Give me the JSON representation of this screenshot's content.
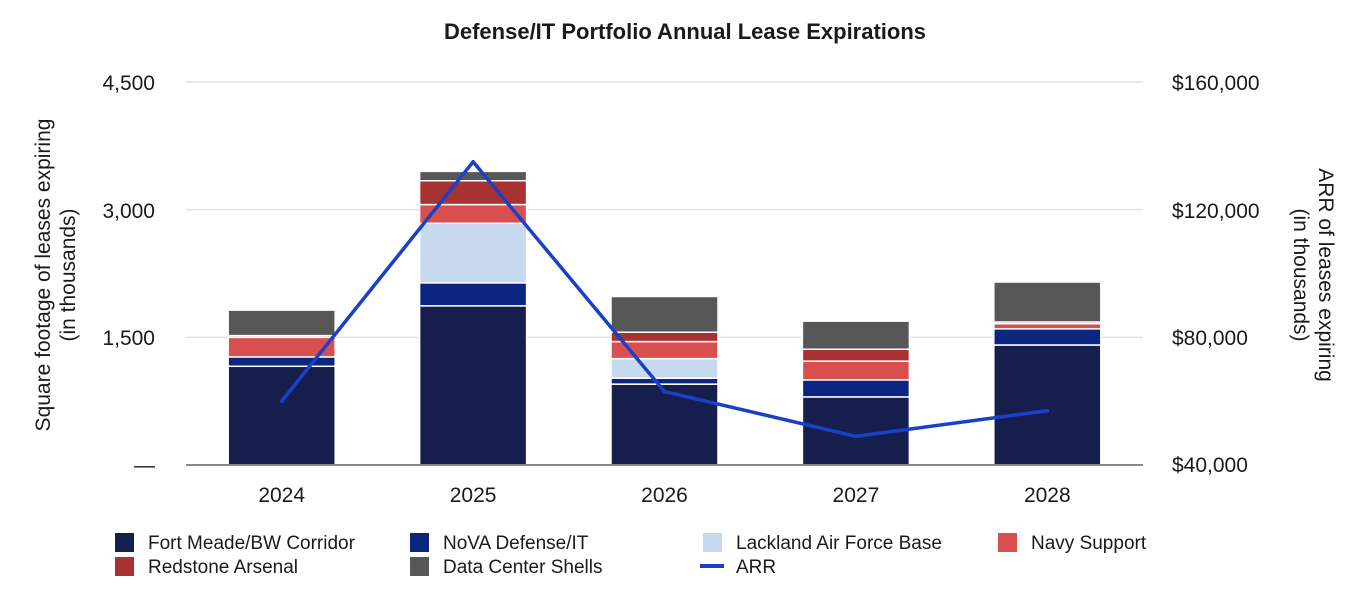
{
  "chart_data": {
    "type": "bar",
    "stacked": true,
    "title": "Defense/IT Portfolio Annual Lease Expirations",
    "categories": [
      "2024",
      "2025",
      "2026",
      "2027",
      "2028"
    ],
    "series": [
      {
        "name": "Fort Meade/BW Corridor",
        "color": "#161e4d",
        "values": [
          1160,
          1870,
          950,
          800,
          1410
        ]
      },
      {
        "name": "NoVA Defense/IT",
        "color": "#0b2580",
        "values": [
          110,
          270,
          70,
          200,
          190
        ]
      },
      {
        "name": "Lackland Air Force Base",
        "color": "#c6d9ef",
        "values": [
          0,
          700,
          230,
          0,
          0
        ]
      },
      {
        "name": "Navy Support",
        "color": "#d94f4f",
        "values": [
          230,
          220,
          200,
          220,
          60
        ]
      },
      {
        "name": "Redstone Arsenal",
        "color": "#a83232",
        "values": [
          20,
          280,
          110,
          140,
          20
        ]
      },
      {
        "name": "Data Center Shells",
        "color": "#555857",
        "values": [
          300,
          110,
          420,
          330,
          470
        ]
      }
    ],
    "line_series": {
      "name": "ARR",
      "color": "#1a40c8",
      "values": [
        60000,
        135000,
        63000,
        49000,
        57000
      ]
    },
    "y_left": {
      "label_line1": "Square footage of leases expiring",
      "label_line2": "(in thousands)",
      "ylim": [
        0,
        4500
      ],
      "ticks": [
        "4,500",
        "3,000",
        "1,500",
        "—"
      ]
    },
    "y_right": {
      "label_line1": "ARR of leases expiring",
      "label_line2": "(in thousands)",
      "ylim": [
        40000,
        160000
      ],
      "ticks": [
        "$160,000",
        "$120,000",
        "$80,000",
        "$40,000"
      ]
    },
    "legend": {
      "placement": "bottom",
      "row1": [
        "Fort Meade/BW Corridor",
        "NoVA Defense/IT",
        "Lackland Air Force Base",
        "Navy Support"
      ],
      "row2": [
        "Redstone Arsenal",
        "Data Center Shells",
        "ARR"
      ]
    }
  }
}
